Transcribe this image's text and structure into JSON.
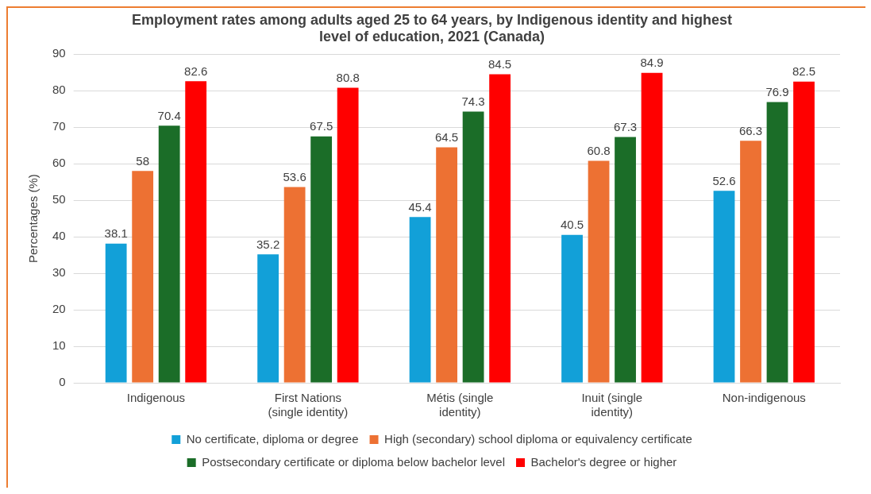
{
  "chart_data": {
    "type": "bar",
    "title": "Employment rates among adults aged 25 to 64 years, by Indigenous identity and highest level of education, 2021 (Canada)",
    "ylabel": "Percentages (%)",
    "categories": [
      "Indigenous",
      "First Nations (single identity)",
      "Métis (single identity)",
      "Inuit (single identity)",
      "Non-indigenous"
    ],
    "series": [
      {
        "name": "No certificate, diploma or degree",
        "color": "#12a0d8",
        "values": [
          38.1,
          35.2,
          45.4,
          40.5,
          52.6
        ]
      },
      {
        "name": "High (secondary) school diploma or equivalency certificate",
        "color": "#ed7133",
        "values": [
          58,
          53.6,
          64.5,
          60.8,
          66.3
        ]
      },
      {
        "name": "Postsecondary certificate or diploma below bachelor level",
        "color": "#1b6d28",
        "values": [
          70.4,
          67.5,
          74.3,
          67.3,
          76.9
        ]
      },
      {
        "name": "Bachelor's degree or higher",
        "color": "#ff0000",
        "values": [
          82.6,
          80.8,
          84.5,
          84.9,
          82.5
        ]
      }
    ],
    "ylim": [
      0,
      90
    ],
    "yticks": [
      0,
      10,
      20,
      30,
      40,
      50,
      60,
      70,
      80,
      90
    ],
    "grid": "y",
    "legend": "bottom",
    "data_labels": true
  }
}
